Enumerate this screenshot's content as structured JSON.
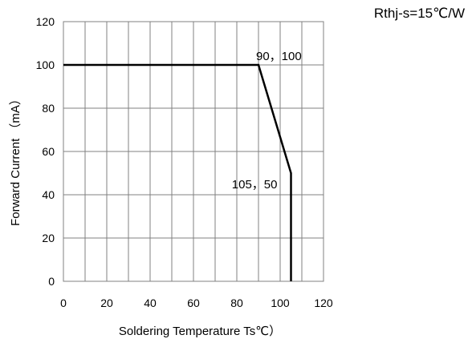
{
  "chart_data": {
    "type": "line",
    "title": "",
    "xlabel": "Soldering Temperature Ts℃）",
    "ylabel": "Forward Current （mA）",
    "xlim": [
      0,
      120
    ],
    "ylim": [
      0,
      120
    ],
    "x_ticks": [
      0,
      20,
      40,
      60,
      80,
      100,
      120
    ],
    "y_ticks": [
      0,
      20,
      40,
      60,
      80,
      100,
      120
    ],
    "grid": true,
    "grid_x_step": 10,
    "grid_y_step": 20,
    "series": [
      {
        "x": [
          0,
          90,
          105,
          105
        ],
        "y": [
          100,
          100,
          50,
          0
        ],
        "color": "#000000"
      }
    ],
    "annotations": [
      {
        "text": "90，100",
        "x": 90,
        "y": 100
      },
      {
        "text": "105，50",
        "x": 105,
        "y": 50
      }
    ],
    "note": "Rthj-s=15℃/W"
  }
}
